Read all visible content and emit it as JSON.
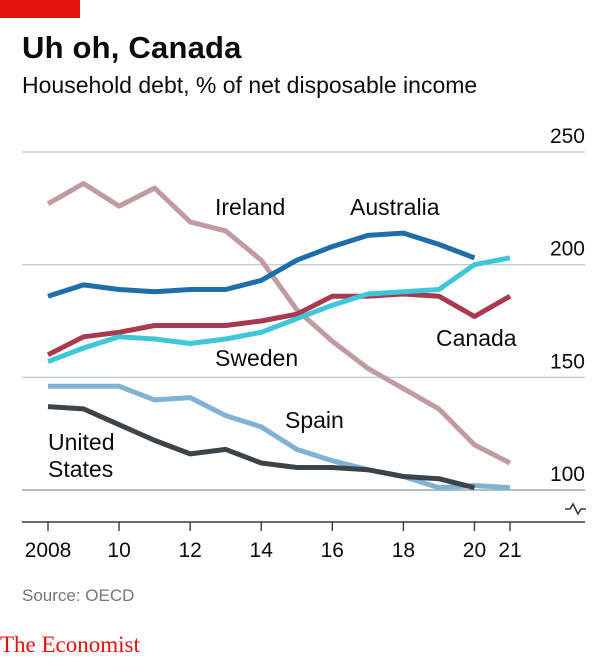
{
  "header": {
    "title": "Uh oh, Canada",
    "subtitle": "Household debt, % of net disposable income"
  },
  "footer": {
    "source": "Source: OECD",
    "brand": "The Economist"
  },
  "colors": {
    "accent": "#e3120b",
    "grid": "#b7c6cf",
    "axis": "#3a3a3a"
  },
  "chart_data": {
    "type": "line",
    "x": [
      2008,
      2009,
      2010,
      2011,
      2012,
      2013,
      2014,
      2015,
      2016,
      2017,
      2018,
      2019,
      2020,
      2021
    ],
    "xtick_values": [
      2008,
      2010,
      2012,
      2014,
      2016,
      2018,
      2020,
      2021
    ],
    "xtick_labels": [
      "2008",
      "10",
      "12",
      "14",
      "16",
      "18",
      "20",
      "21"
    ],
    "ytick_values": [
      100,
      150,
      200,
      250
    ],
    "ytick_labels": [
      "100",
      "150",
      "200",
      "250"
    ],
    "ylim": [
      85,
      250
    ],
    "y_axis_break": true,
    "grid": "horizontal",
    "series": [
      {
        "name": "Ireland",
        "label": "Ireland",
        "color": "#c09ca1",
        "x": [
          2008,
          2009,
          2010,
          2011,
          2012,
          2013,
          2014,
          2015,
          2016,
          2017,
          2018,
          2019,
          2020,
          2021
        ],
        "values": [
          227,
          236,
          226,
          234,
          219,
          215,
          202,
          180,
          166,
          154,
          145,
          136,
          120,
          112
        ]
      },
      {
        "name": "Australia",
        "label": "Australia",
        "color": "#1f6ea8",
        "x": [
          2008,
          2009,
          2010,
          2011,
          2012,
          2013,
          2014,
          2015,
          2016,
          2017,
          2018,
          2019,
          2020
        ],
        "values": [
          186,
          191,
          189,
          188,
          189,
          189,
          193,
          202,
          208,
          213,
          214,
          209,
          203
        ]
      },
      {
        "name": "Canada",
        "label": "Canada",
        "color": "#a8394e",
        "x": [
          2008,
          2009,
          2010,
          2011,
          2012,
          2013,
          2014,
          2015,
          2016,
          2017,
          2018,
          2019,
          2020,
          2021
        ],
        "values": [
          160,
          168,
          170,
          173,
          173,
          173,
          175,
          178,
          186,
          186,
          187,
          186,
          177,
          186
        ]
      },
      {
        "name": "Sweden",
        "label": "Sweden",
        "color": "#3ec7d8",
        "x": [
          2008,
          2009,
          2010,
          2011,
          2012,
          2013,
          2014,
          2015,
          2016,
          2017,
          2018,
          2019,
          2020,
          2021
        ],
        "values": [
          157,
          163,
          168,
          167,
          165,
          167,
          170,
          176,
          182,
          187,
          188,
          189,
          200,
          203
        ]
      },
      {
        "name": "Spain",
        "label": "Spain",
        "color": "#7fb2d3",
        "x": [
          2008,
          2009,
          2010,
          2011,
          2012,
          2013,
          2014,
          2015,
          2016,
          2017,
          2018,
          2019,
          2020,
          2021
        ],
        "values": [
          146,
          146,
          146,
          140,
          141,
          133,
          128,
          118,
          113,
          109,
          106,
          101,
          102,
          101
        ]
      },
      {
        "name": "United States",
        "label": [
          "United",
          "States"
        ],
        "color": "#3d4449",
        "x": [
          2008,
          2009,
          2010,
          2011,
          2012,
          2013,
          2014,
          2015,
          2016,
          2017,
          2018,
          2019,
          2020
        ],
        "values": [
          137,
          136,
          129,
          122,
          116,
          118,
          112,
          110,
          110,
          109,
          106,
          105,
          101
        ]
      }
    ]
  }
}
